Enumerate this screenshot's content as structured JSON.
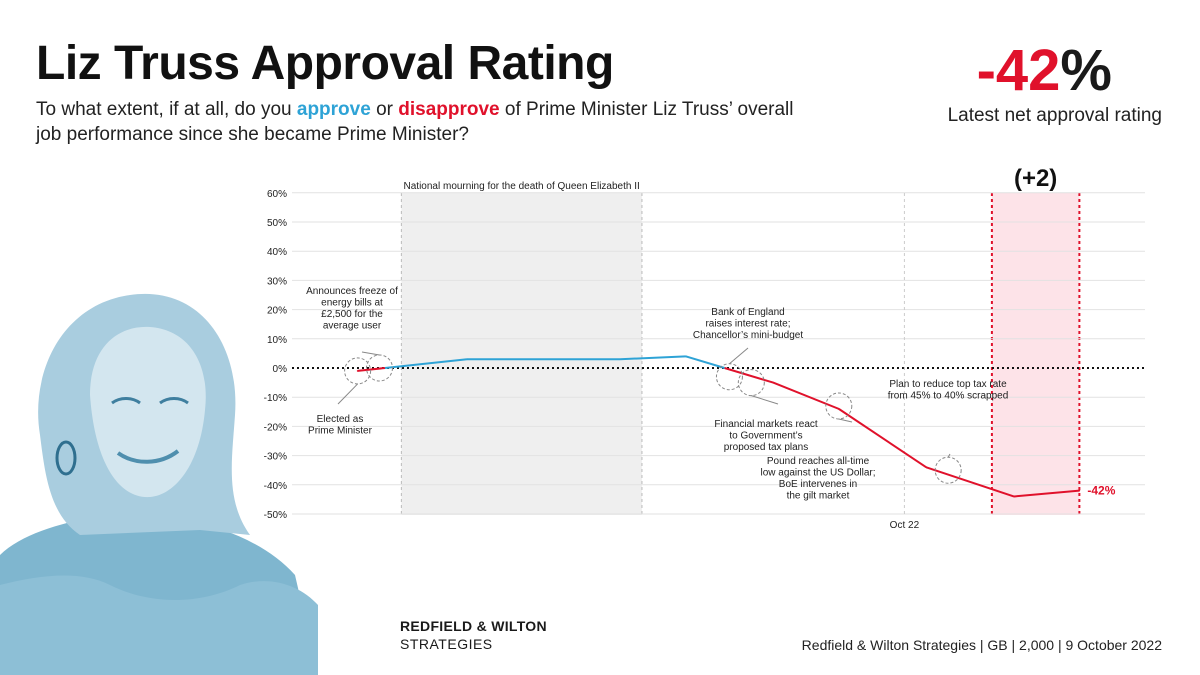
{
  "header": {
    "title": "Liz Truss Approval Rating",
    "question_pre": "To what extent, if at all, do you ",
    "approve_word": "approve",
    "question_mid": " or ",
    "disapprove_word": "disapprove",
    "question_post": " of Prime Minister Liz Truss’ overall job performance since she became Prime Minister?",
    "headline_value": "-42",
    "headline_pct": "%",
    "headline_caption": "Latest net approval rating"
  },
  "footer": {
    "brand_line1": "REDFIELD & WILTON",
    "brand_line2": "STRATEGIES",
    "source": "Redfield & Wilton Strategies | GB | 2,000 | 9 October 2022"
  },
  "colors": {
    "approve": "#2ea3d6",
    "disapprove": "#e0112b",
    "shading": "#efefef",
    "highlight": "#fde3e8"
  },
  "chart_data": {
    "type": "line",
    "title": "",
    "xlabel": "",
    "ylabel": "",
    "ylim": [
      -50,
      60
    ],
    "yticks": [
      60,
      50,
      40,
      30,
      20,
      10,
      0,
      -10,
      -20,
      -30,
      -40,
      -50
    ],
    "ytick_labels": [
      "60%",
      "50%",
      "40%",
      "30%",
      "20%",
      "10%",
      "0%",
      "-10%",
      "-20%",
      "-30%",
      "-40%",
      "-50%"
    ],
    "x_tick_label": "Oct 22",
    "x": [
      "2022-09-06",
      "2022-09-11",
      "2022-09-18",
      "2022-09-21",
      "2022-09-25",
      "2022-09-28",
      "2022-10-02",
      "2022-10-06",
      "2022-10-09"
    ],
    "series": [
      {
        "values": [
          -1,
          3,
          3,
          4,
          -5,
          -14,
          -34,
          -44,
          -42
        ]
      }
    ],
    "last_value_label": "-42%",
    "change_label": "(+2)",
    "shaded_period": {
      "start": "2022-09-08",
      "end": "2022-09-19",
      "label": "National mourning for the death of Queen Elizabeth II"
    },
    "highlight_period": {
      "start": "2022-10-05",
      "end": "2022-10-09"
    },
    "annotations": [
      {
        "x": "2022-09-06",
        "y": -1,
        "text": [
          "Elected as",
          "Prime Minister"
        ]
      },
      {
        "x": "2022-09-07",
        "y": 0,
        "text": [
          "Announces freeze of",
          "energy bills at",
          "£2,500 for the",
          "average user"
        ]
      },
      {
        "x": "2022-09-23",
        "y": -3,
        "text": [
          "Bank of England",
          "raises interest rate;",
          "Chancellor’s mini-budget"
        ]
      },
      {
        "x": "2022-09-24",
        "y": -5,
        "text": [
          "Financial markets react",
          "to Government’s",
          "proposed tax plans"
        ]
      },
      {
        "x": "2022-09-28",
        "y": -13,
        "text": [
          "Pound reaches all-time",
          "low against the US Dollar;",
          "BoE intervenes in",
          "the gilt market"
        ]
      },
      {
        "x": "2022-10-03",
        "y": -35,
        "text": [
          "Plan to reduce top tax rate",
          "from 45% to 40% scrapped"
        ]
      }
    ]
  }
}
